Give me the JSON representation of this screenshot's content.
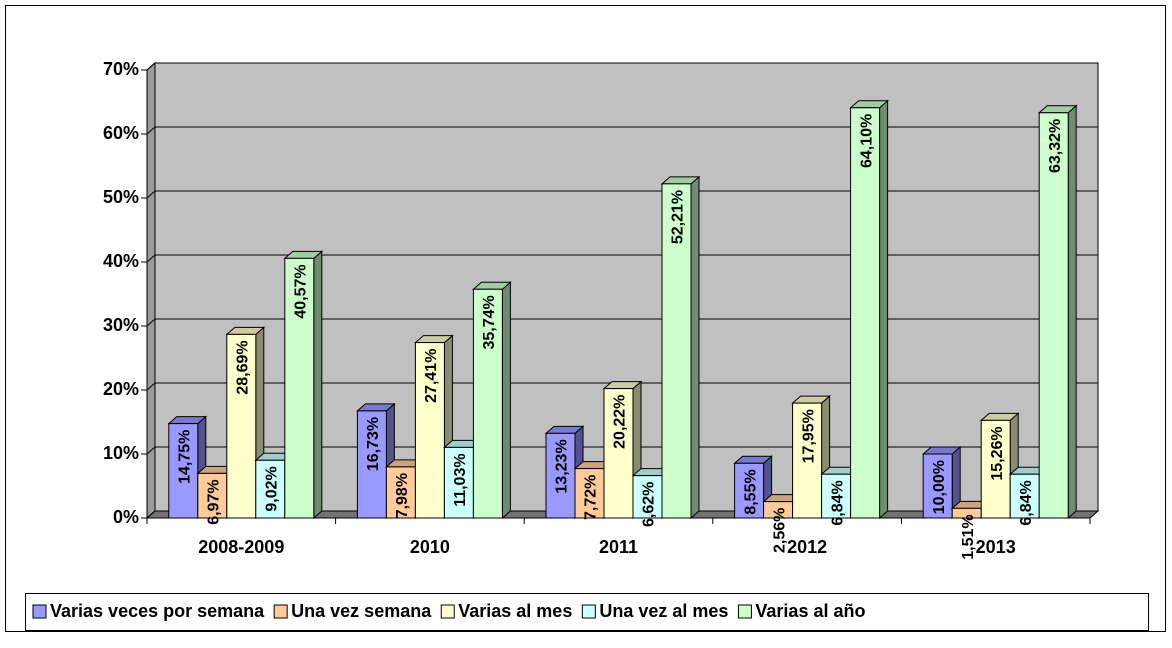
{
  "chart_data": {
    "type": "bar3d",
    "categories": [
      "2008-2009",
      "2010",
      "2011",
      "2012",
      "2013"
    ],
    "series": [
      {
        "name": "Varias veces por semana",
        "color": "#9999ff",
        "values": [
          14.75,
          16.73,
          13.23,
          8.55,
          10.0
        ],
        "value_labels": [
          "14,75%",
          "16,73%",
          "13,23%",
          "8,55%",
          "10,00%"
        ]
      },
      {
        "name": "Una vez semana",
        "color": "#ffcc99",
        "values": [
          6.97,
          7.98,
          7.72,
          2.56,
          1.51
        ],
        "value_labels": [
          "6,97%",
          "7,98%",
          "7,72%",
          "2,56%",
          "1,51%"
        ]
      },
      {
        "name": "Varias al mes",
        "color": "#ffffcc",
        "values": [
          28.69,
          27.41,
          20.22,
          17.95,
          15.26
        ],
        "value_labels": [
          "28,69%",
          "27,41%",
          "20,22%",
          "17,95%",
          "15,26%"
        ]
      },
      {
        "name": "Una vez al mes",
        "color": "#ccffff",
        "values": [
          9.02,
          11.03,
          6.62,
          6.84,
          6.84
        ],
        "value_labels": [
          "9,02%",
          "11,03%",
          "6,62%",
          "6,84%",
          "6,84%"
        ]
      },
      {
        "name": "Varias al año",
        "color": "#ccffcc",
        "values": [
          40.57,
          35.74,
          52.21,
          64.1,
          63.32
        ],
        "value_labels": [
          "40,57%",
          "35,74%",
          "52,21%",
          "64,10%",
          "63,32%"
        ]
      }
    ],
    "ylim": [
      0,
      70
    ],
    "yticks": [
      {
        "value": 0,
        "label": "0%"
      },
      {
        "value": 10,
        "label": "10%"
      },
      {
        "value": 20,
        "label": "20%"
      },
      {
        "value": 30,
        "label": "30%"
      },
      {
        "value": 40,
        "label": "40%"
      },
      {
        "value": 50,
        "label": "50%"
      },
      {
        "value": 60,
        "label": "60%"
      },
      {
        "value": 70,
        "label": "70%"
      }
    ],
    "grid": true,
    "legend": "bottom",
    "wall_color": "#c0c0c0"
  }
}
